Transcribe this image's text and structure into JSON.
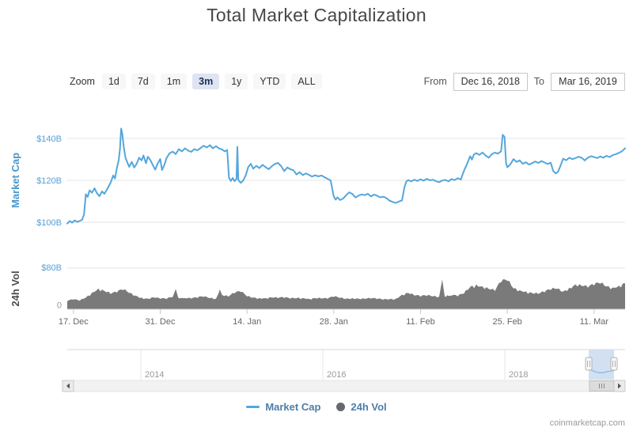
{
  "title": "Total Market Capitalization",
  "watermark": "coinmarketcap.com",
  "toolbar": {
    "zoom_label": "Zoom",
    "ranges": [
      "1d",
      "7d",
      "1m",
      "3m",
      "1y",
      "YTD",
      "ALL"
    ],
    "selected_range": "3m",
    "from_label": "From",
    "from_value": "Dec 16, 2018",
    "to_label": "To",
    "to_value": "Mar 16, 2019"
  },
  "legend": {
    "market_cap": "Market Cap",
    "volume": "24h Vol"
  },
  "colors": {
    "market_cap_line": "#54a6dc",
    "volume_fill": "#7a7a7a",
    "axis_label_blue": "#55a0d6",
    "mc_axis_title": "#4a98cc",
    "vol_axis_title": "#4d4d4d",
    "grid": "#e6e6e6",
    "axis_line": "#d4d4d4",
    "tick_label": "#666666",
    "year_label": "#9a9a9a",
    "selection_fill": "#cdddf0",
    "nav_line": "#8fbfe4"
  },
  "chart_data": {
    "type": "line",
    "title": "Total Market Capitalization",
    "x_unit": "days since Dec 16, 2018",
    "range_days": 90,
    "x_axis": {
      "ticks": [
        {
          "label": "17. Dec",
          "day": 1
        },
        {
          "label": "31. Dec",
          "day": 15
        },
        {
          "label": "14. Jan",
          "day": 29
        },
        {
          "label": "28. Jan",
          "day": 43
        },
        {
          "label": "11. Feb",
          "day": 57
        },
        {
          "label": "25. Feb",
          "day": 71
        },
        {
          "label": "11. Mar",
          "day": 85
        }
      ]
    },
    "market_cap": {
      "name": "Market Cap",
      "axis_title": "Market Cap",
      "unit": "$B",
      "ylim": [
        100,
        140
      ],
      "y_ticks": [
        {
          "label": "$100B",
          "value": 100
        },
        {
          "label": "$120B",
          "value": 120
        },
        {
          "label": "$140B",
          "value": 140
        }
      ],
      "points": [
        [
          0,
          99.4
        ],
        [
          0.4,
          100.6
        ],
        [
          0.8,
          99.8
        ],
        [
          1.2,
          100.9
        ],
        [
          1.6,
          100.2
        ],
        [
          2,
          100.6
        ],
        [
          2.4,
          101.2
        ],
        [
          2.7,
          103.8
        ],
        [
          3,
          113.4
        ],
        [
          3.3,
          112.1
        ],
        [
          3.6,
          115.2
        ],
        [
          4,
          114.1
        ],
        [
          4.4,
          116.2
        ],
        [
          4.8,
          113.8
        ],
        [
          5.2,
          112.4
        ],
        [
          5.6,
          114.7
        ],
        [
          6,
          113.6
        ],
        [
          6.5,
          116.1
        ],
        [
          7,
          118.9
        ],
        [
          7.4,
          122.3
        ],
        [
          7.7,
          120.9
        ],
        [
          8,
          125.8
        ],
        [
          8.3,
          129.6
        ],
        [
          8.5,
          134.8
        ],
        [
          8.7,
          144.7
        ],
        [
          8.9,
          141.9
        ],
        [
          9.1,
          136.1
        ],
        [
          9.4,
          130.8
        ],
        [
          9.7,
          128.5
        ],
        [
          10,
          126.4
        ],
        [
          10.4,
          128.8
        ],
        [
          10.8,
          126.1
        ],
        [
          11.2,
          127.9
        ],
        [
          11.6,
          130.8
        ],
        [
          12,
          129.5
        ],
        [
          12.3,
          131.9
        ],
        [
          12.7,
          128.1
        ],
        [
          13,
          131.3
        ],
        [
          13.4,
          129.7
        ],
        [
          13.8,
          127.3
        ],
        [
          14.2,
          125.1
        ],
        [
          14.6,
          128.1
        ],
        [
          15,
          130.2
        ],
        [
          15.3,
          124.9
        ],
        [
          15.7,
          127.6
        ],
        [
          16,
          130.5
        ],
        [
          16.5,
          132.9
        ],
        [
          17,
          133.7
        ],
        [
          17.5,
          132.5
        ],
        [
          18,
          134.9
        ],
        [
          18.5,
          133.8
        ],
        [
          19,
          135.3
        ],
        [
          19.5,
          134.2
        ],
        [
          20,
          133.6
        ],
        [
          20.5,
          134.9
        ],
        [
          21,
          134.3
        ],
        [
          21.5,
          135.4
        ],
        [
          22,
          136.5
        ],
        [
          22.5,
          135.7
        ],
        [
          23,
          136.8
        ],
        [
          23.5,
          135.3
        ],
        [
          24,
          136.3
        ],
        [
          24.5,
          135.2
        ],
        [
          25,
          134.7
        ],
        [
          25.4,
          133.8
        ],
        [
          25.8,
          134.5
        ],
        [
          26.1,
          121.2
        ],
        [
          26.4,
          119.7
        ],
        [
          26.7,
          121.1
        ],
        [
          27,
          119.6
        ],
        [
          27.3,
          120.7
        ],
        [
          27.45,
          136
        ],
        [
          27.6,
          120.1
        ],
        [
          28,
          118.8
        ],
        [
          28.4,
          120
        ],
        [
          28.8,
          122.4
        ],
        [
          29.2,
          126.3
        ],
        [
          29.6,
          127.9
        ],
        [
          30,
          125.6
        ],
        [
          30.5,
          126.9
        ],
        [
          31,
          125.8
        ],
        [
          31.5,
          127.4
        ],
        [
          32,
          126.3
        ],
        [
          32.5,
          125.3
        ],
        [
          33,
          126.7
        ],
        [
          33.5,
          127.8
        ],
        [
          34,
          128.3
        ],
        [
          34.5,
          126.8
        ],
        [
          35,
          124.4
        ],
        [
          35.5,
          126.1
        ],
        [
          36,
          125.3
        ],
        [
          36.5,
          124.8
        ],
        [
          37,
          122.8
        ],
        [
          37.5,
          123.9
        ],
        [
          38,
          122.5
        ],
        [
          38.5,
          123.3
        ],
        [
          39,
          122.6
        ],
        [
          39.5,
          121.8
        ],
        [
          40,
          122.4
        ],
        [
          40.5,
          121.9
        ],
        [
          41,
          122.3
        ],
        [
          41.5,
          121.5
        ],
        [
          42,
          120.7
        ],
        [
          42.5,
          119.9
        ],
        [
          43,
          112.3
        ],
        [
          43.3,
          110.8
        ],
        [
          43.6,
          111.9
        ],
        [
          44,
          110.6
        ],
        [
          44.5,
          111.3
        ],
        [
          45,
          112.9
        ],
        [
          45.5,
          114.3
        ],
        [
          46,
          113.5
        ],
        [
          46.5,
          111.8
        ],
        [
          47,
          112.7
        ],
        [
          47.5,
          113.3
        ],
        [
          48,
          112.9
        ],
        [
          48.5,
          113.6
        ],
        [
          49,
          112.3
        ],
        [
          49.5,
          113.2
        ],
        [
          50,
          112.6
        ],
        [
          50.5,
          111.9
        ],
        [
          51,
          112.2
        ],
        [
          51.5,
          111.5
        ],
        [
          52,
          110.3
        ],
        [
          52.5,
          109.7
        ],
        [
          53,
          109.2
        ],
        [
          53.5,
          109.9
        ],
        [
          54,
          110.4
        ],
        [
          54.4,
          116.6
        ],
        [
          54.7,
          119.4
        ],
        [
          55,
          120.1
        ],
        [
          55.5,
          119.5
        ],
        [
          56,
          120.3
        ],
        [
          56.5,
          119.7
        ],
        [
          57,
          120.5
        ],
        [
          57.5,
          119.8
        ],
        [
          58,
          120.7
        ],
        [
          58.5,
          120
        ],
        [
          59,
          120.3
        ],
        [
          59.5,
          119.6
        ],
        [
          60,
          119.1
        ],
        [
          60.5,
          119.9
        ],
        [
          61,
          120.2
        ],
        [
          61.5,
          119.5
        ],
        [
          62,
          120.6
        ],
        [
          62.5,
          120.1
        ],
        [
          63,
          121
        ],
        [
          63.5,
          120.4
        ],
        [
          64,
          124.5
        ],
        [
          64.5,
          127.8
        ],
        [
          65,
          131.5
        ],
        [
          65.3,
          129.9
        ],
        [
          65.6,
          132.3
        ],
        [
          66,
          133
        ],
        [
          66.5,
          132.1
        ],
        [
          67,
          133.3
        ],
        [
          67.5,
          131.8
        ],
        [
          68,
          130.8
        ],
        [
          68.5,
          132.5
        ],
        [
          69,
          133.2
        ],
        [
          69.5,
          132.7
        ],
        [
          70,
          133.9
        ],
        [
          70.25,
          141.7
        ],
        [
          70.55,
          140.8
        ],
        [
          70.8,
          128.2
        ],
        [
          71,
          126.2
        ],
        [
          71.5,
          127.7
        ],
        [
          72,
          130.1
        ],
        [
          72.5,
          128.8
        ],
        [
          73,
          129.5
        ],
        [
          73.5,
          127.9
        ],
        [
          74,
          128.6
        ],
        [
          74.5,
          127.5
        ],
        [
          75,
          128.2
        ],
        [
          75.5,
          129
        ],
        [
          76,
          128.3
        ],
        [
          76.5,
          129.2
        ],
        [
          77,
          128.5
        ],
        [
          77.5,
          127.8
        ],
        [
          78,
          128.4
        ],
        [
          78.4,
          124.5
        ],
        [
          78.8,
          123.3
        ],
        [
          79.2,
          124.2
        ],
        [
          79.6,
          127.1
        ],
        [
          80,
          130.3
        ],
        [
          80.5,
          129.6
        ],
        [
          81,
          130.8
        ],
        [
          81.5,
          130.1
        ],
        [
          82,
          130.6
        ],
        [
          82.5,
          131.3
        ],
        [
          83,
          130.7
        ],
        [
          83.5,
          129.5
        ],
        [
          84,
          130.8
        ],
        [
          84.5,
          131.5
        ],
        [
          85,
          131.1
        ],
        [
          85.5,
          130.6
        ],
        [
          86,
          131.4
        ],
        [
          86.5,
          130.8
        ],
        [
          87,
          131.7
        ],
        [
          87.5,
          131.1
        ],
        [
          88,
          132
        ],
        [
          88.5,
          132.5
        ],
        [
          89,
          133.1
        ],
        [
          89.5,
          133.9
        ],
        [
          90,
          135.3
        ]
      ]
    },
    "volume": {
      "name": "24h Vol",
      "axis_title": "24h Vol",
      "unit": "$B",
      "ylim": [
        0,
        80
      ],
      "y_ticks": [
        {
          "label": "0",
          "value": 0
        },
        {
          "label": "$80B",
          "value": 80
        }
      ],
      "points": [
        [
          0,
          15
        ],
        [
          1,
          18
        ],
        [
          2,
          16
        ],
        [
          3,
          22
        ],
        [
          4,
          32
        ],
        [
          5,
          40
        ],
        [
          6,
          35
        ],
        [
          7,
          29
        ],
        [
          8,
          32
        ],
        [
          9,
          37
        ],
        [
          10,
          31
        ],
        [
          11,
          26
        ],
        [
          12,
          22
        ],
        [
          13,
          20
        ],
        [
          14,
          22
        ],
        [
          15,
          19.5
        ],
        [
          16,
          19
        ],
        [
          17,
          23
        ],
        [
          17.5,
          39
        ],
        [
          17.9,
          22
        ],
        [
          18.5,
          21.5
        ],
        [
          19,
          21
        ],
        [
          20,
          20
        ],
        [
          21,
          21.5
        ],
        [
          22,
          23.5
        ],
        [
          23,
          21
        ],
        [
          24,
          20
        ],
        [
          24.6,
          38
        ],
        [
          25,
          27
        ],
        [
          26,
          24
        ],
        [
          27,
          30.5
        ],
        [
          28,
          33
        ],
        [
          29,
          24.5
        ],
        [
          30,
          22
        ],
        [
          31,
          21.5
        ],
        [
          32,
          21
        ],
        [
          33,
          22
        ],
        [
          34,
          21
        ],
        [
          35,
          21.5
        ],
        [
          36,
          20
        ],
        [
          37,
          21
        ],
        [
          38,
          21.5
        ],
        [
          39,
          20
        ],
        [
          40,
          21
        ],
        [
          41,
          20
        ],
        [
          42,
          19.5
        ],
        [
          43,
          23.5
        ],
        [
          44,
          21.5
        ],
        [
          45,
          20
        ],
        [
          46,
          21.5
        ],
        [
          47,
          20
        ],
        [
          48,
          19.5
        ],
        [
          49,
          20
        ],
        [
          50,
          19
        ],
        [
          51,
          18
        ],
        [
          52,
          19
        ],
        [
          53,
          20
        ],
        [
          54,
          28
        ],
        [
          55,
          31
        ],
        [
          56,
          26
        ],
        [
          57,
          24
        ],
        [
          58,
          25.5
        ],
        [
          59,
          24.5
        ],
        [
          60,
          24
        ],
        [
          60.5,
          58
        ],
        [
          60.9,
          24.5
        ],
        [
          61.5,
          25.5
        ],
        [
          62,
          26
        ],
        [
          63,
          24.5
        ],
        [
          64,
          30
        ],
        [
          65,
          43
        ],
        [
          66,
          48
        ],
        [
          67,
          44
        ],
        [
          68,
          39
        ],
        [
          69,
          35
        ],
        [
          70,
          52
        ],
        [
          71,
          55
        ],
        [
          72,
          40
        ],
        [
          73,
          36.5
        ],
        [
          74,
          34.5
        ],
        [
          75,
          31
        ],
        [
          76,
          29
        ],
        [
          77,
          32.5
        ],
        [
          78,
          37
        ],
        [
          79,
          39
        ],
        [
          80,
          34
        ],
        [
          81,
          41.5
        ],
        [
          82,
          48
        ],
        [
          83,
          45
        ],
        [
          84,
          41.5
        ],
        [
          85,
          46
        ],
        [
          86,
          49.5
        ],
        [
          87,
          44
        ],
        [
          88,
          42
        ],
        [
          89,
          45.5
        ],
        [
          90,
          50
        ]
      ]
    },
    "navigator": {
      "year_labels": [
        "2014",
        "2016",
        "2018"
      ],
      "selected_range_labels": [
        "Dec 16, 2018",
        "Mar 16, 2019"
      ]
    },
    "legend_position": "bottom",
    "grid": true
  }
}
